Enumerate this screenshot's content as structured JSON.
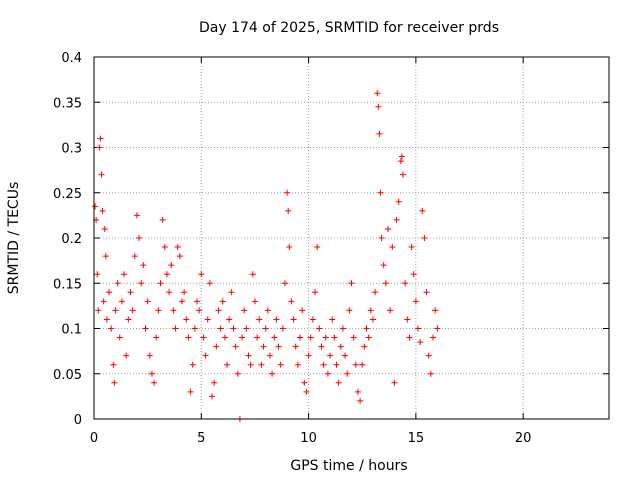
{
  "colors": {
    "series": "#ff0000",
    "grid": "#a0a0a0",
    "axis": "#000000"
  },
  "chart_data": {
    "type": "scatter",
    "title": "Day 174 of 2025, SRMTID for receiver prds",
    "xlabel": "GPS time / hours",
    "ylabel": "SRMTID / TECUs",
    "xlim": [
      0,
      24
    ],
    "ylim": [
      0,
      0.4
    ],
    "x_ticks": [
      0,
      5,
      10,
      15,
      20
    ],
    "x_tick_labels": [
      "0",
      "5",
      "10",
      "15",
      "20"
    ],
    "y_ticks": [
      0,
      0.05,
      0.1,
      0.15,
      0.2,
      0.25,
      0.3,
      0.35,
      0.4
    ],
    "y_tick_labels": [
      "0",
      "0.05",
      "0.1",
      "0.15",
      "0.2",
      "0.25",
      "0.3",
      "0.35",
      "0.4"
    ],
    "grid": true,
    "marker": "plus",
    "series": [
      {
        "name": "SRMTID",
        "points": [
          [
            0.05,
            0.235
          ],
          [
            0.1,
            0.22
          ],
          [
            0.15,
            0.16
          ],
          [
            0.2,
            0.12
          ],
          [
            0.25,
            0.3
          ],
          [
            0.3,
            0.31
          ],
          [
            0.35,
            0.27
          ],
          [
            0.4,
            0.23
          ],
          [
            0.45,
            0.13
          ],
          [
            0.5,
            0.21
          ],
          [
            0.55,
            0.18
          ],
          [
            0.6,
            0.11
          ],
          [
            0.7,
            0.14
          ],
          [
            0.8,
            0.1
          ],
          [
            0.9,
            0.06
          ],
          [
            0.95,
            0.04
          ],
          [
            1.0,
            0.12
          ],
          [
            1.1,
            0.15
          ],
          [
            1.2,
            0.09
          ],
          [
            1.3,
            0.13
          ],
          [
            1.4,
            0.16
          ],
          [
            1.5,
            0.07
          ],
          [
            1.6,
            0.11
          ],
          [
            1.7,
            0.14
          ],
          [
            1.8,
            0.12
          ],
          [
            1.9,
            0.18
          ],
          [
            2.0,
            0.225
          ],
          [
            2.1,
            0.2
          ],
          [
            2.2,
            0.15
          ],
          [
            2.3,
            0.17
          ],
          [
            2.4,
            0.1
          ],
          [
            2.5,
            0.13
          ],
          [
            2.6,
            0.07
          ],
          [
            2.7,
            0.05
          ],
          [
            2.8,
            0.04
          ],
          [
            2.9,
            0.09
          ],
          [
            3.0,
            0.12
          ],
          [
            3.1,
            0.15
          ],
          [
            3.2,
            0.22
          ],
          [
            3.3,
            0.19
          ],
          [
            3.4,
            0.16
          ],
          [
            3.5,
            0.14
          ],
          [
            3.6,
            0.17
          ],
          [
            3.7,
            0.12
          ],
          [
            3.8,
            0.1
          ],
          [
            3.9,
            0.19
          ],
          [
            4.0,
            0.18
          ],
          [
            4.1,
            0.13
          ],
          [
            4.2,
            0.14
          ],
          [
            4.3,
            0.11
          ],
          [
            4.4,
            0.09
          ],
          [
            4.5,
            0.03
          ],
          [
            4.6,
            0.06
          ],
          [
            4.7,
            0.1
          ],
          [
            4.8,
            0.13
          ],
          [
            4.9,
            0.12
          ],
          [
            5.0,
            0.16
          ],
          [
            5.1,
            0.09
          ],
          [
            5.2,
            0.07
          ],
          [
            5.3,
            0.11
          ],
          [
            5.4,
            0.15
          ],
          [
            5.5,
            0.025
          ],
          [
            5.6,
            0.04
          ],
          [
            5.7,
            0.08
          ],
          [
            5.8,
            0.12
          ],
          [
            5.9,
            0.1
          ],
          [
            6.0,
            0.13
          ],
          [
            6.1,
            0.09
          ],
          [
            6.2,
            0.06
          ],
          [
            6.3,
            0.11
          ],
          [
            6.4,
            0.14
          ],
          [
            6.5,
            0.1
          ],
          [
            6.6,
            0.08
          ],
          [
            6.7,
            0.05
          ],
          [
            6.8,
            0.0
          ],
          [
            6.9,
            0.09
          ],
          [
            7.0,
            0.12
          ],
          [
            7.1,
            0.1
          ],
          [
            7.2,
            0.07
          ],
          [
            7.3,
            0.06
          ],
          [
            7.4,
            0.16
          ],
          [
            7.5,
            0.13
          ],
          [
            7.6,
            0.09
          ],
          [
            7.7,
            0.11
          ],
          [
            7.8,
            0.06
          ],
          [
            7.9,
            0.08
          ],
          [
            8.0,
            0.1
          ],
          [
            8.1,
            0.12
          ],
          [
            8.2,
            0.07
          ],
          [
            8.3,
            0.05
          ],
          [
            8.4,
            0.09
          ],
          [
            8.5,
            0.11
          ],
          [
            8.6,
            0.08
          ],
          [
            8.7,
            0.06
          ],
          [
            8.8,
            0.1
          ],
          [
            8.9,
            0.15
          ],
          [
            9.0,
            0.25
          ],
          [
            9.05,
            0.23
          ],
          [
            9.1,
            0.19
          ],
          [
            9.2,
            0.13
          ],
          [
            9.3,
            0.11
          ],
          [
            9.4,
            0.08
          ],
          [
            9.5,
            0.06
          ],
          [
            9.6,
            0.09
          ],
          [
            9.7,
            0.12
          ],
          [
            9.8,
            0.04
          ],
          [
            9.9,
            0.03
          ],
          [
            10.0,
            0.07
          ],
          [
            10.1,
            0.09
          ],
          [
            10.2,
            0.11
          ],
          [
            10.3,
            0.14
          ],
          [
            10.4,
            0.19
          ],
          [
            10.5,
            0.1
          ],
          [
            10.6,
            0.08
          ],
          [
            10.7,
            0.06
          ],
          [
            10.8,
            0.09
          ],
          [
            10.9,
            0.05
          ],
          [
            11.0,
            0.07
          ],
          [
            11.1,
            0.11
          ],
          [
            11.2,
            0.09
          ],
          [
            11.3,
            0.06
          ],
          [
            11.4,
            0.04
          ],
          [
            11.5,
            0.08
          ],
          [
            11.6,
            0.1
          ],
          [
            11.7,
            0.07
          ],
          [
            11.8,
            0.05
          ],
          [
            11.9,
            0.12
          ],
          [
            12.0,
            0.15
          ],
          [
            12.1,
            0.09
          ],
          [
            12.2,
            0.06
          ],
          [
            12.3,
            0.03
          ],
          [
            12.4,
            0.02
          ],
          [
            12.5,
            0.06
          ],
          [
            12.6,
            0.08
          ],
          [
            12.7,
            0.1
          ],
          [
            12.8,
            0.09
          ],
          [
            12.9,
            0.12
          ],
          [
            13.0,
            0.11
          ],
          [
            13.1,
            0.14
          ],
          [
            13.2,
            0.36
          ],
          [
            13.25,
            0.345
          ],
          [
            13.3,
            0.315
          ],
          [
            13.35,
            0.25
          ],
          [
            13.4,
            0.2
          ],
          [
            13.5,
            0.17
          ],
          [
            13.6,
            0.15
          ],
          [
            13.7,
            0.21
          ],
          [
            13.8,
            0.12
          ],
          [
            13.9,
            0.19
          ],
          [
            14.0,
            0.04
          ],
          [
            14.1,
            0.22
          ],
          [
            14.2,
            0.24
          ],
          [
            14.3,
            0.285
          ],
          [
            14.35,
            0.29
          ],
          [
            14.4,
            0.27
          ],
          [
            14.5,
            0.15
          ],
          [
            14.6,
            0.11
          ],
          [
            14.7,
            0.09
          ],
          [
            14.8,
            0.19
          ],
          [
            14.9,
            0.16
          ],
          [
            15.0,
            0.13
          ],
          [
            15.1,
            0.1
          ],
          [
            15.2,
            0.085
          ],
          [
            15.3,
            0.23
          ],
          [
            15.4,
            0.2
          ],
          [
            15.5,
            0.14
          ],
          [
            15.6,
            0.07
          ],
          [
            15.7,
            0.05
          ],
          [
            15.8,
            0.09
          ],
          [
            15.9,
            0.12
          ],
          [
            16.0,
            0.1
          ]
        ]
      }
    ]
  }
}
